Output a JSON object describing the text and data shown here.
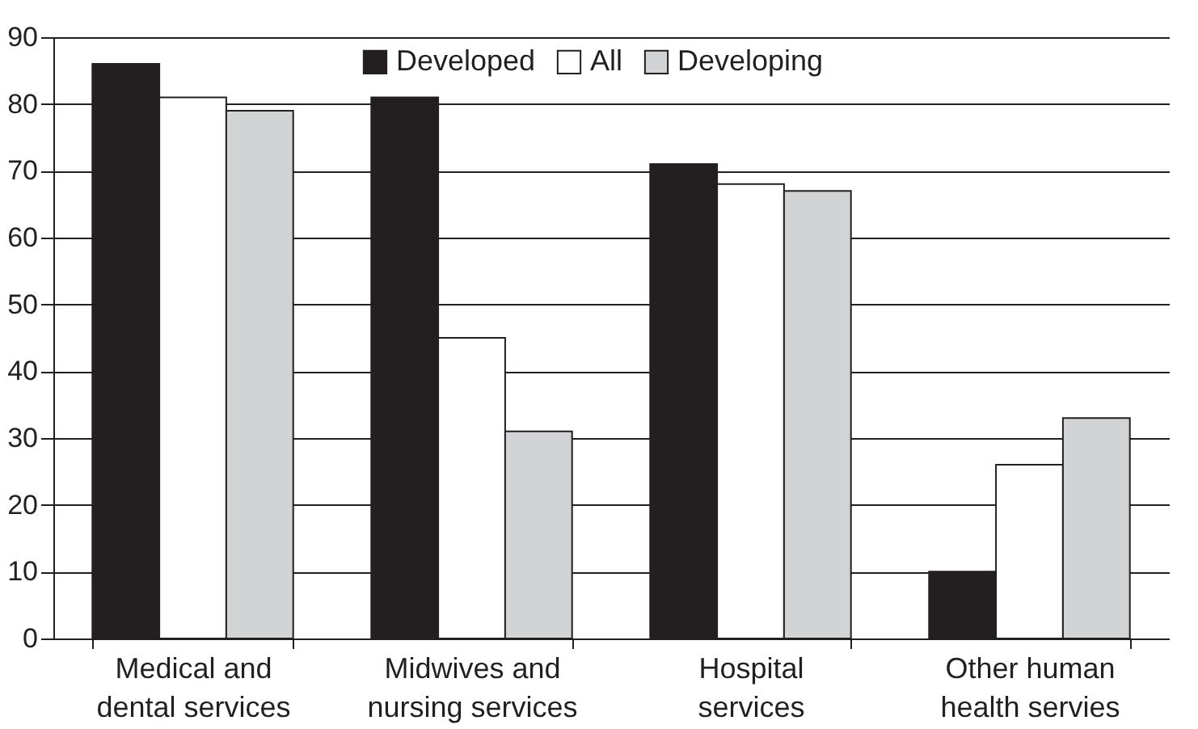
{
  "chart_data": {
    "type": "bar",
    "categories": [
      "Medical and dental services",
      "Midwives and nursing services",
      "Hospital services",
      "Other human health servies"
    ],
    "series": [
      {
        "name": "Developed",
        "color": "#231f20",
        "values": [
          86,
          81,
          71,
          10
        ]
      },
      {
        "name": "All",
        "color": "#ffffff",
        "values": [
          81,
          45,
          68,
          26
        ]
      },
      {
        "name": "Developing",
        "color": "#d1d3d4",
        "values": [
          79,
          31,
          67,
          33
        ]
      }
    ],
    "ylim": [
      0,
      90
    ],
    "yticks": [
      0,
      10,
      20,
      30,
      40,
      50,
      60,
      70,
      80,
      90
    ],
    "grid": "y",
    "legend": "top"
  }
}
